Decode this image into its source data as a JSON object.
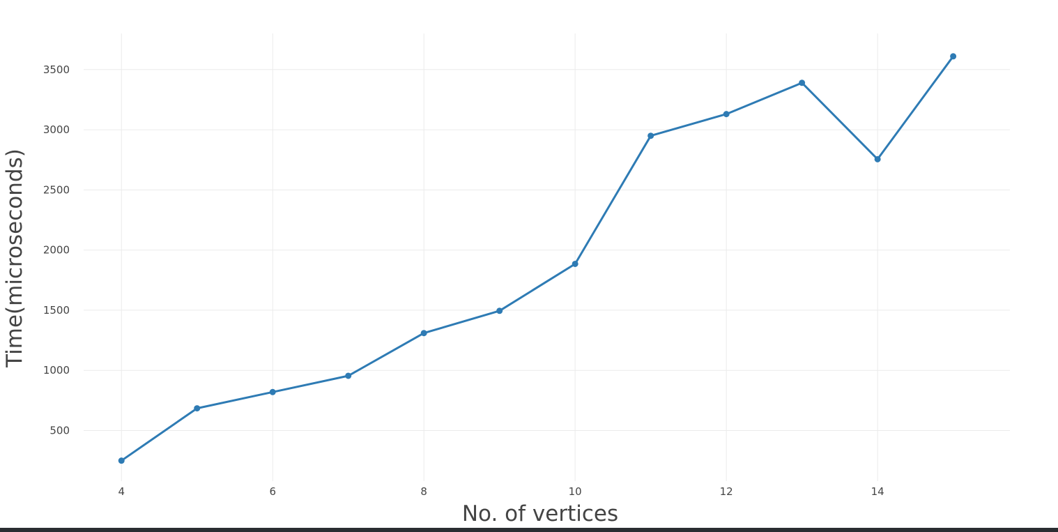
{
  "chart_data": {
    "type": "line",
    "title": "",
    "xlabel": "No. of vertices",
    "ylabel": "Time(microseconds)",
    "xlim": [
      3.5,
      15.75
    ],
    "ylim": [
      80,
      3800
    ],
    "x_ticks": [
      4,
      6,
      8,
      10,
      12,
      14
    ],
    "y_ticks": [
      500,
      1000,
      1500,
      2000,
      2500,
      3000,
      3500
    ],
    "grid": true,
    "legend": "none",
    "series": [
      {
        "color": "#2e7bb4",
        "x": [
          4,
          5,
          6,
          7,
          8,
          9,
          10,
          11,
          12,
          13,
          14,
          15
        ],
        "values": [
          250,
          685,
          820,
          955,
          1310,
          1495,
          1885,
          2950,
          3130,
          3390,
          2755,
          3610
        ]
      }
    ]
  }
}
